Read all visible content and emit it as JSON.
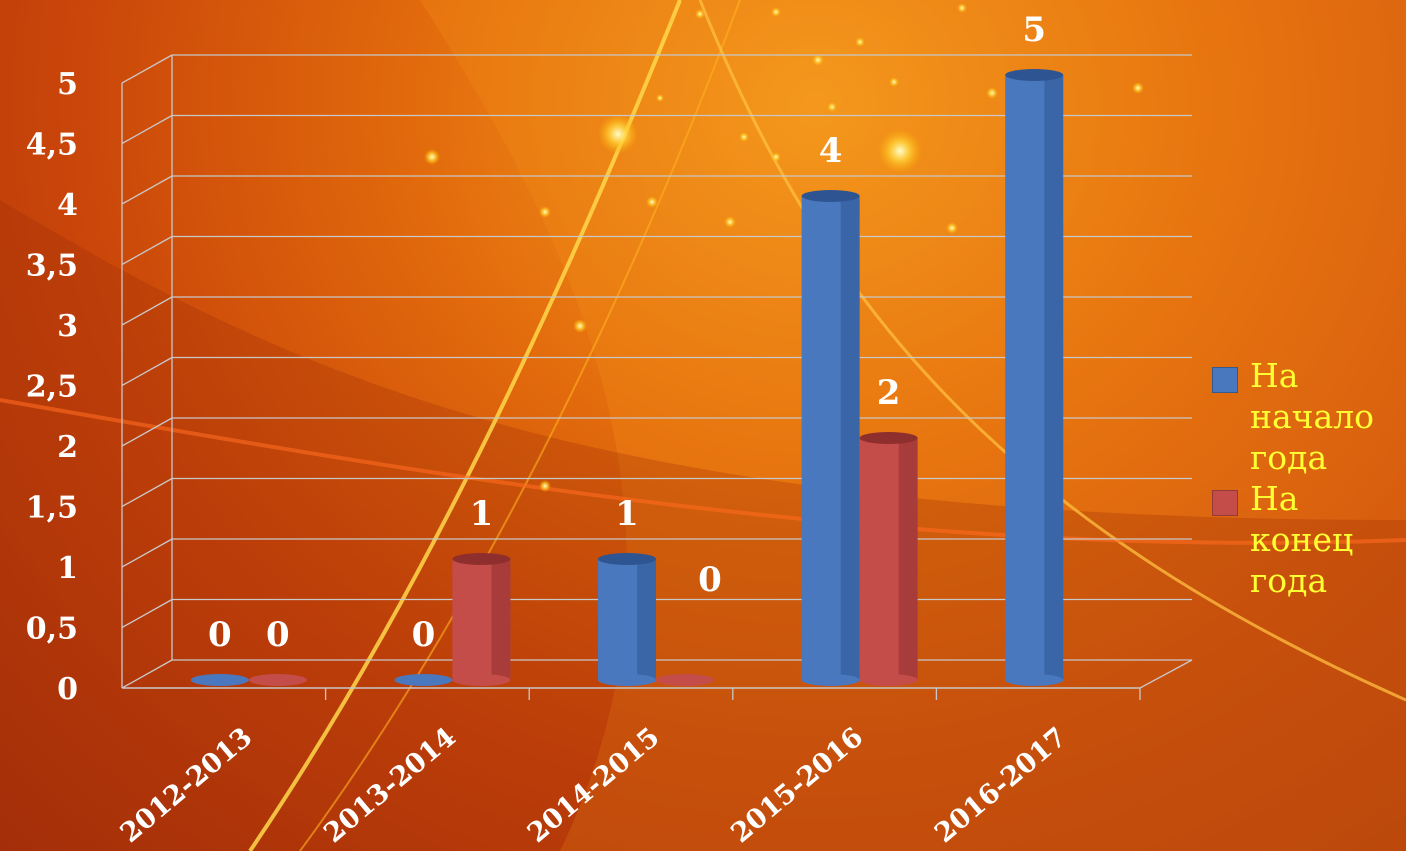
{
  "colors": {
    "series_1": "#4a78be",
    "series_1_dark": "#2e5591",
    "series_2": "#c44d4a",
    "series_2_dark": "#8f2f2d",
    "legend_text": "#ffff33",
    "axis_text": "#ffffff",
    "gridline": "#c8c8c8"
  },
  "chart_data": {
    "type": "bar",
    "style": "3d-cylinder",
    "title": "",
    "xlabel": "",
    "ylabel": "",
    "categories": [
      "2012-2013",
      "2013-2014",
      "2014-2015",
      "2015-2016",
      "2016-2017"
    ],
    "series": [
      {
        "name": "На начало года",
        "values": [
          0,
          0,
          1,
          4,
          5
        ]
      },
      {
        "name": "На конец года",
        "values": [
          0,
          1,
          0,
          2,
          null
        ]
      }
    ],
    "data_labels": [
      [
        "0",
        "0",
        "1",
        "4",
        "5"
      ],
      [
        "0",
        "1",
        "0",
        "2",
        ""
      ]
    ],
    "ylim": [
      0,
      5
    ],
    "yticks": [
      "0",
      "0,5",
      "1",
      "1,5",
      "2",
      "2,5",
      "3",
      "3,5",
      "4",
      "4,5",
      "5"
    ],
    "grid": true,
    "legend_position": "right"
  }
}
